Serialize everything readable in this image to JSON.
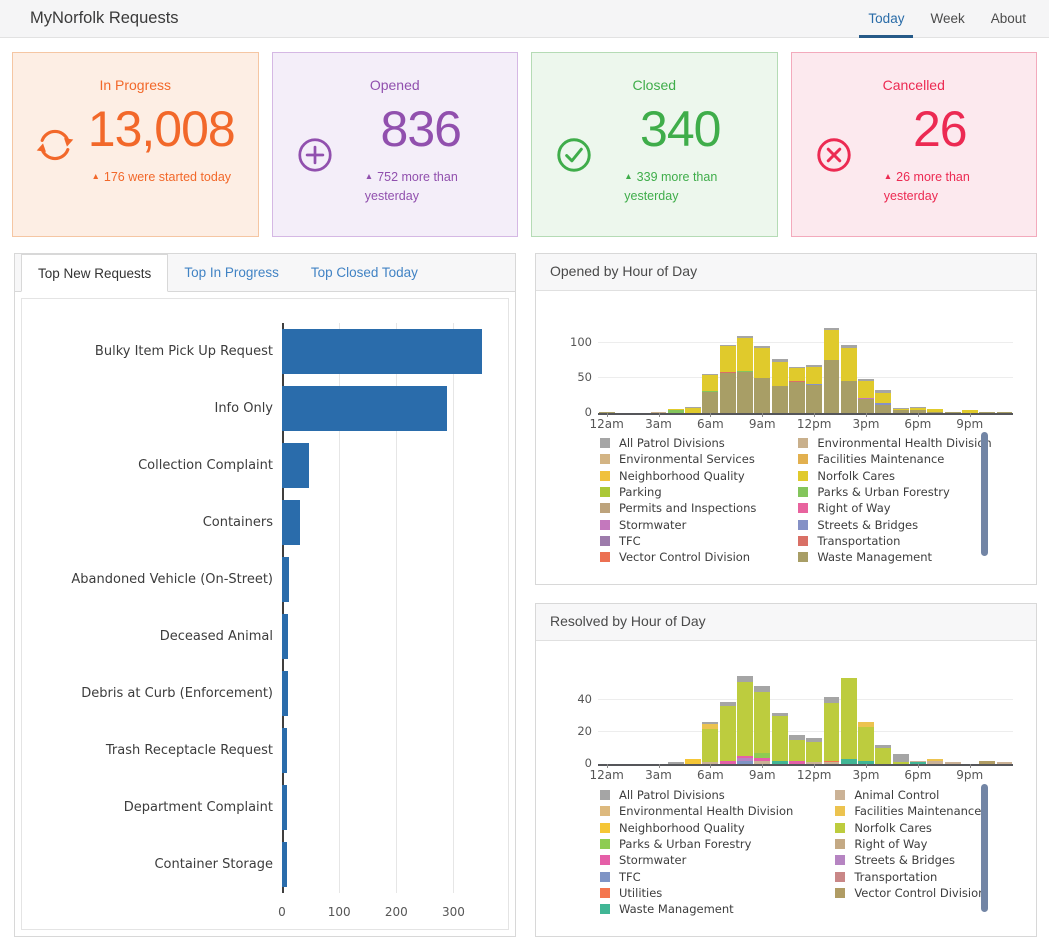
{
  "header": {
    "title": "MyNorfolk Requests",
    "tabs": [
      {
        "label": "Today",
        "active": true
      },
      {
        "label": "Week",
        "active": false
      },
      {
        "label": "About",
        "active": false
      }
    ]
  },
  "cards": [
    {
      "label": "In Progress",
      "value": "13,008",
      "delta": "176 were started today",
      "icon": "refresh-icon",
      "accent": "#f2682a",
      "bg": "#fdeee4",
      "border": "#f5c6a3"
    },
    {
      "label": "Opened",
      "value": "836",
      "delta": "752 more than yesterday",
      "icon": "plus-circle-icon",
      "accent": "#9150ae",
      "bg": "#f4eef9",
      "border": "#d5b8e4"
    },
    {
      "label": "Closed",
      "value": "340",
      "delta": "339 more than yesterday",
      "icon": "check-circle-icon",
      "accent": "#3fad4a",
      "bg": "#edf7ed",
      "border": "#b5dbb5"
    },
    {
      "label": "Cancelled",
      "value": "26",
      "delta": "26 more than yesterday",
      "icon": "x-circle-icon",
      "accent": "#ec2a52",
      "bg": "#fce9ee",
      "border": "#f3aabc"
    }
  ],
  "left_panel": {
    "tabs": [
      {
        "label": "Top New Requests",
        "active": true
      },
      {
        "label": "Top In Progress",
        "active": false
      },
      {
        "label": "Top Closed Today",
        "active": false
      }
    ]
  },
  "panels": {
    "opened": {
      "title": "Opened by Hour of Day"
    },
    "resolved": {
      "title": "Resolved by Hour of Day"
    }
  },
  "chart_data": [
    {
      "id": "top-new-requests",
      "type": "bar",
      "orientation": "horizontal",
      "categories": [
        "Bulky Item Pick Up Request",
        "Info Only",
        "Collection Complaint",
        "Containers",
        "Abandoned Vehicle (On-Street)",
        "Deceased Animal",
        "Debris at Curb (Enforcement)",
        "Trash Receptacle Request",
        "Department Complaint",
        "Container Storage"
      ],
      "values": [
        350,
        288,
        48,
        32,
        13,
        10,
        10,
        9,
        9,
        8
      ],
      "bar_color": "#2a6cab",
      "xticks": [
        0,
        100,
        200,
        300
      ],
      "xmax": 385,
      "grid": true
    },
    {
      "id": "opened-by-hour",
      "type": "stacked-bar",
      "title": "Opened by Hour of Day",
      "yticks": [
        0,
        50,
        100
      ],
      "ymax": 137,
      "xtick_hours": [
        0,
        3,
        6,
        9,
        12,
        15,
        18,
        21
      ],
      "xtick_labels": [
        "12am",
        "3am",
        "6am",
        "9am",
        "12pm",
        "3pm",
        "6pm",
        "9pm"
      ],
      "legend": [
        {
          "key": "patrol",
          "label": "All Patrol Divisions",
          "color": "#a5a5a5"
        },
        {
          "key": "env_services",
          "label": "Environmental Services",
          "color": "#d3b484"
        },
        {
          "key": "neigh",
          "label": "Neighborhood Quality",
          "color": "#f0c13d"
        },
        {
          "key": "parking",
          "label": "Parking",
          "color": "#abc837"
        },
        {
          "key": "permits",
          "label": "Permits and Inspections",
          "color": "#bda37c"
        },
        {
          "key": "stormwater",
          "label": "Stormwater",
          "color": "#c478bd"
        },
        {
          "key": "tfc",
          "label": "TFC",
          "color": "#9d7bab"
        },
        {
          "key": "vector",
          "label": "Vector Control Division",
          "color": "#ec7052"
        },
        {
          "key": "env_health",
          "label": "Environmental Health Division",
          "color": "#c9b08c"
        },
        {
          "key": "facilities",
          "label": "Facilities Maintenance",
          "color": "#e2b04f"
        },
        {
          "key": "cares",
          "label": "Norfolk Cares",
          "color": "#e0ca2c"
        },
        {
          "key": "parks",
          "label": "Parks & Urban Forestry",
          "color": "#84c55c"
        },
        {
          "key": "right_of_way",
          "label": "Right of Way",
          "color": "#e8639e"
        },
        {
          "key": "streets",
          "label": "Streets & Bridges",
          "color": "#8591c6"
        },
        {
          "key": "transport",
          "label": "Transportation",
          "color": "#d97066"
        },
        {
          "key": "waste",
          "label": "Waste Management",
          "color": "#a89e66"
        }
      ],
      "bars": [
        [
          [
            "waste",
            1
          ]
        ],
        [],
        [],
        [
          [
            "env_health",
            2
          ]
        ],
        [
          [
            "parks",
            4
          ],
          [
            "cares",
            1
          ]
        ],
        [
          [
            "cares",
            7
          ],
          [
            "patrol",
            1
          ]
        ],
        [
          [
            "waste",
            30
          ],
          [
            "parks",
            2
          ],
          [
            "cares",
            22
          ],
          [
            "patrol",
            2
          ]
        ],
        [
          [
            "waste",
            57
          ],
          [
            "transport",
            1
          ],
          [
            "cares",
            37
          ],
          [
            "patrol",
            2
          ]
        ],
        [
          [
            "waste",
            58
          ],
          [
            "right_of_way",
            1
          ],
          [
            "parks",
            1
          ],
          [
            "cares",
            47
          ],
          [
            "patrol",
            3
          ]
        ],
        [
          [
            "waste",
            50
          ],
          [
            "cares",
            43
          ],
          [
            "patrol",
            2
          ]
        ],
        [
          [
            "waste",
            38
          ],
          [
            "streets",
            1
          ],
          [
            "cares",
            34
          ],
          [
            "patrol",
            4
          ]
        ],
        [
          [
            "waste",
            44
          ],
          [
            "transport",
            1
          ],
          [
            "cares",
            19
          ],
          [
            "patrol",
            1
          ]
        ],
        [
          [
            "waste",
            40
          ],
          [
            "streets",
            1
          ],
          [
            "cares",
            25
          ],
          [
            "patrol",
            2
          ]
        ],
        [
          [
            "waste",
            75
          ],
          [
            "streets",
            1
          ],
          [
            "cares",
            42
          ],
          [
            "patrol",
            4
          ]
        ],
        [
          [
            "waste",
            45
          ],
          [
            "right_of_way",
            1
          ],
          [
            "cares",
            47
          ],
          [
            "patrol",
            4
          ]
        ],
        [
          [
            "waste",
            20
          ],
          [
            "stormwater",
            2
          ],
          [
            "cares",
            24
          ],
          [
            "patrol",
            2
          ]
        ],
        [
          [
            "waste",
            12
          ],
          [
            "streets",
            2
          ],
          [
            "cares",
            15
          ],
          [
            "patrol",
            4
          ]
        ],
        [
          [
            "waste",
            4
          ],
          [
            "cares",
            2
          ],
          [
            "patrol",
            1
          ]
        ],
        [
          [
            "waste",
            5
          ],
          [
            "cares",
            2
          ],
          [
            "patrol",
            2
          ]
        ],
        [
          [
            "waste",
            1
          ],
          [
            "cares",
            5
          ]
        ],
        [
          [
            "waste",
            2
          ]
        ],
        [
          [
            "cares",
            4
          ]
        ],
        [
          [
            "waste",
            1
          ]
        ],
        [
          [
            "waste",
            2
          ]
        ]
      ]
    },
    {
      "id": "resolved-by-hour",
      "type": "stacked-bar",
      "title": "Resolved by Hour of Day",
      "yticks": [
        0,
        20,
        40
      ],
      "ymax": 60,
      "xtick_hours": [
        0,
        3,
        6,
        9,
        12,
        15,
        18,
        21
      ],
      "xtick_labels": [
        "12am",
        "3am",
        "6am",
        "9am",
        "12pm",
        "3pm",
        "6pm",
        "9pm"
      ],
      "legend": [
        {
          "key": "patrol",
          "label": "All Patrol Divisions",
          "color": "#a5a5a5"
        },
        {
          "key": "env_health",
          "label": "Environmental Health Division",
          "color": "#ddb97e"
        },
        {
          "key": "neigh",
          "label": "Neighborhood Quality",
          "color": "#f5c636"
        },
        {
          "key": "parks",
          "label": "Parks & Urban Forestry",
          "color": "#8ecc52"
        },
        {
          "key": "stormwater",
          "label": "Stormwater",
          "color": "#e55fa8"
        },
        {
          "key": "tfc",
          "label": "TFC",
          "color": "#7f94c5"
        },
        {
          "key": "utilities",
          "label": "Utilities",
          "color": "#f4764e"
        },
        {
          "key": "waste",
          "label": "Waste Management",
          "color": "#41b695"
        },
        {
          "key": "animal",
          "label": "Animal Control",
          "color": "#cbb296"
        },
        {
          "key": "facilities",
          "label": "Facilities Maintenance",
          "color": "#ecc34f"
        },
        {
          "key": "cares",
          "label": "Norfolk Cares",
          "color": "#bdcc3e"
        },
        {
          "key": "right_of_way",
          "label": "Right of Way",
          "color": "#c4a984"
        },
        {
          "key": "streets",
          "label": "Streets & Bridges",
          "color": "#b684c2"
        },
        {
          "key": "transport",
          "label": "Transportation",
          "color": "#c98787"
        },
        {
          "key": "vector",
          "label": "Vector Control Division",
          "color": "#b09c64"
        }
      ],
      "bars": [
        [],
        [],
        [],
        [],
        [
          [
            "patrol",
            1
          ]
        ],
        [
          [
            "neigh",
            3
          ]
        ],
        [
          [
            "animal",
            1
          ],
          [
            "cares",
            21
          ],
          [
            "facilities",
            3
          ],
          [
            "patrol",
            1
          ]
        ],
        [
          [
            "stormwater",
            2
          ],
          [
            "cares",
            34
          ],
          [
            "patrol",
            3
          ]
        ],
        [
          [
            "tfc",
            2
          ],
          [
            "streets",
            2
          ],
          [
            "stormwater",
            1
          ],
          [
            "cares",
            46
          ],
          [
            "patrol",
            4
          ]
        ],
        [
          [
            "animal",
            2
          ],
          [
            "stormwater",
            2
          ],
          [
            "parks",
            3
          ],
          [
            "cares",
            38
          ],
          [
            "patrol",
            4
          ]
        ],
        [
          [
            "waste",
            2
          ],
          [
            "cares",
            28
          ],
          [
            "patrol",
            2
          ]
        ],
        [
          [
            "stormwater",
            2
          ],
          [
            "cares",
            13
          ],
          [
            "patrol",
            3
          ]
        ],
        [
          [
            "animal",
            1
          ],
          [
            "cares",
            13
          ],
          [
            "patrol",
            2
          ]
        ],
        [
          [
            "animal",
            1
          ],
          [
            "utilities",
            1
          ],
          [
            "cares",
            36
          ],
          [
            "patrol",
            4
          ]
        ],
        [
          [
            "waste",
            3
          ],
          [
            "cares",
            51
          ]
        ],
        [
          [
            "waste",
            2
          ],
          [
            "cares",
            21
          ],
          [
            "facilities",
            3
          ]
        ],
        [
          [
            "cares",
            10
          ],
          [
            "patrol",
            2
          ]
        ],
        [
          [
            "cares",
            1
          ],
          [
            "patrol",
            5
          ]
        ],
        [
          [
            "waste",
            1
          ],
          [
            "animal",
            1
          ]
        ],
        [
          [
            "animal",
            2
          ],
          [
            "facilities",
            1
          ]
        ],
        [
          [
            "animal",
            1
          ]
        ],
        [],
        [
          [
            "vector",
            2
          ]
        ],
        [
          [
            "animal",
            1
          ]
        ]
      ]
    }
  ]
}
